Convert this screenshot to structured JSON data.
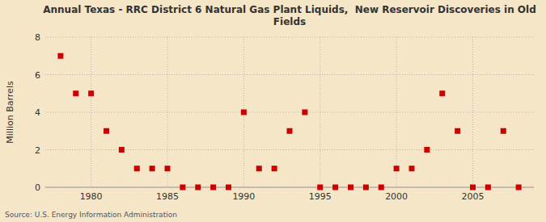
{
  "chart_data": {
    "type": "scatter",
    "title": "Annual Texas - RRC District 6 Natural Gas Plant Liquids,  New Reservoir Discoveries in Old\nFields",
    "ylabel": "Million Barrels",
    "source": "Source: U.S. Energy Information Administration",
    "x": [
      1978,
      1979,
      1980,
      1981,
      1982,
      1983,
      1984,
      1985,
      1986,
      1987,
      1988,
      1989,
      1990,
      1991,
      1992,
      1993,
      1994,
      1995,
      1996,
      1997,
      1998,
      1999,
      2000,
      2001,
      2002,
      2003,
      2004,
      2005,
      2006,
      2007,
      2008
    ],
    "values": [
      7.0,
      5.0,
      5.0,
      3.0,
      2.0,
      1.0,
      1.0,
      1.0,
      0.0,
      0.0,
      0.0,
      0.0,
      4.0,
      1.0,
      1.0,
      3.0,
      4.0,
      0.0,
      0.0,
      0.0,
      0.0,
      0.0,
      1.0,
      1.0,
      2.0,
      5.0,
      3.0,
      0.0,
      0.0,
      3.0,
      0.0
    ],
    "xlim": [
      1977,
      2009
    ],
    "ylim": [
      0,
      8
    ],
    "xticks": [
      1980,
      1985,
      1990,
      1995,
      2000,
      2005
    ],
    "yticks": [
      0,
      2,
      4,
      6,
      8
    ],
    "grid": true,
    "color": "#cc0000",
    "marker": "square"
  }
}
